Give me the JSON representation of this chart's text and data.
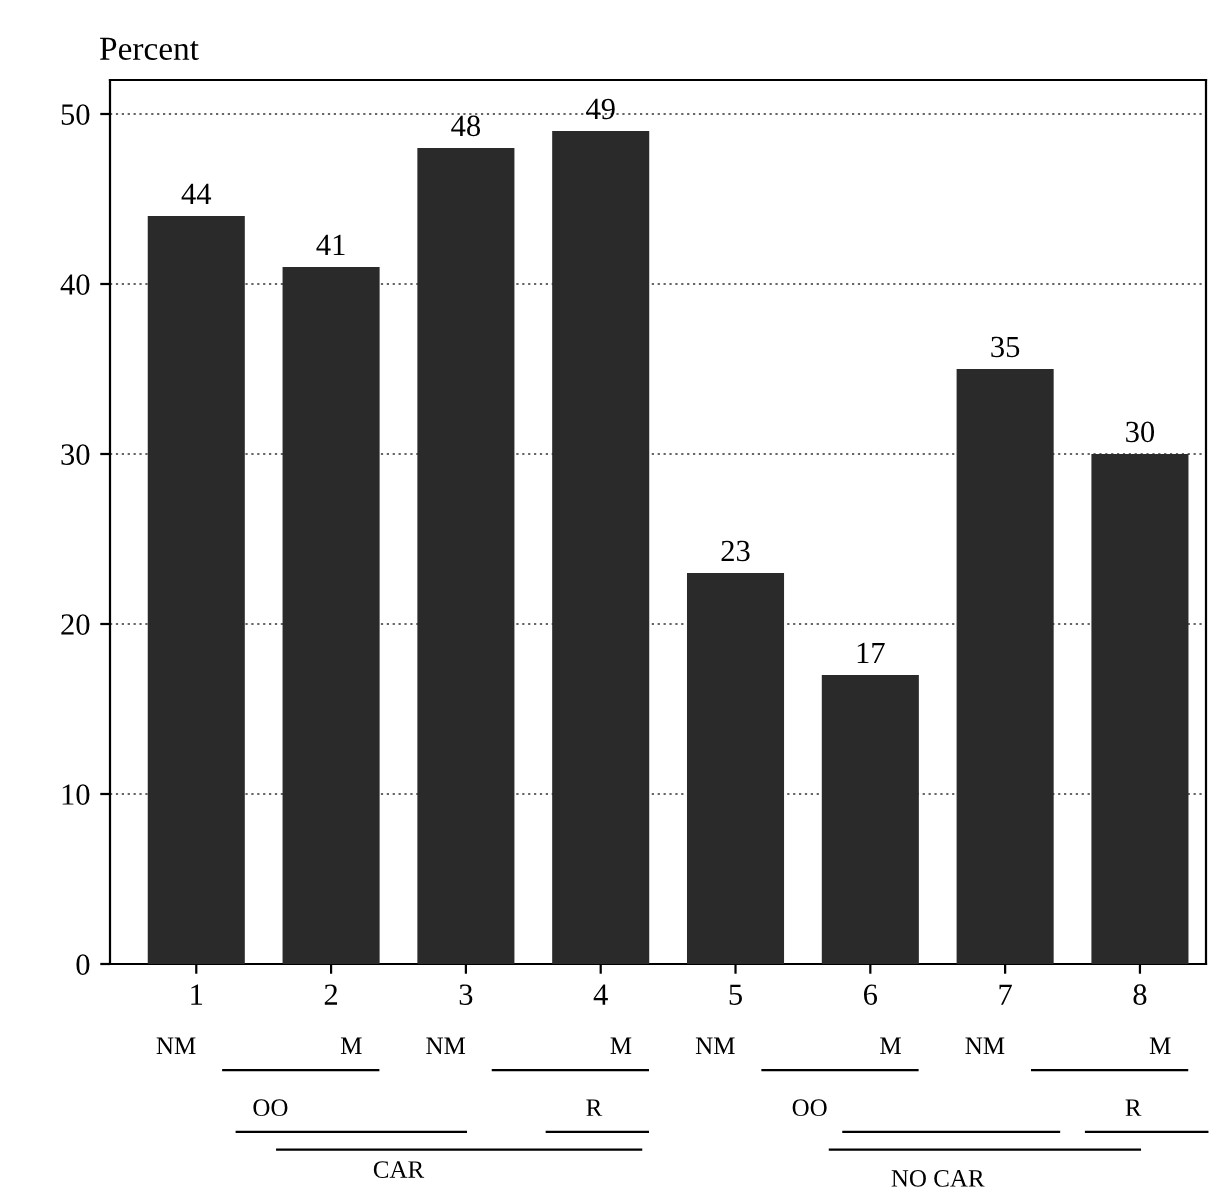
{
  "chart_data": {
    "type": "bar",
    "ylabel": "Percent",
    "categories": [
      "1",
      "2",
      "3",
      "4",
      "5",
      "6",
      "7",
      "8"
    ],
    "values": [
      44,
      41,
      48,
      49,
      23,
      17,
      35,
      30
    ],
    "color": "#2a2a2a",
    "data_labels": true,
    "ylim": [
      0,
      52
    ],
    "yticks": [
      0,
      10,
      20,
      30,
      40,
      50
    ],
    "grid": "y",
    "annotations": [
      "NM",
      "M",
      "NM",
      "M",
      "NM",
      "M",
      "NM",
      "M",
      "OO",
      "R",
      "OO",
      "R",
      "CAR",
      "NO CAR"
    ]
  }
}
